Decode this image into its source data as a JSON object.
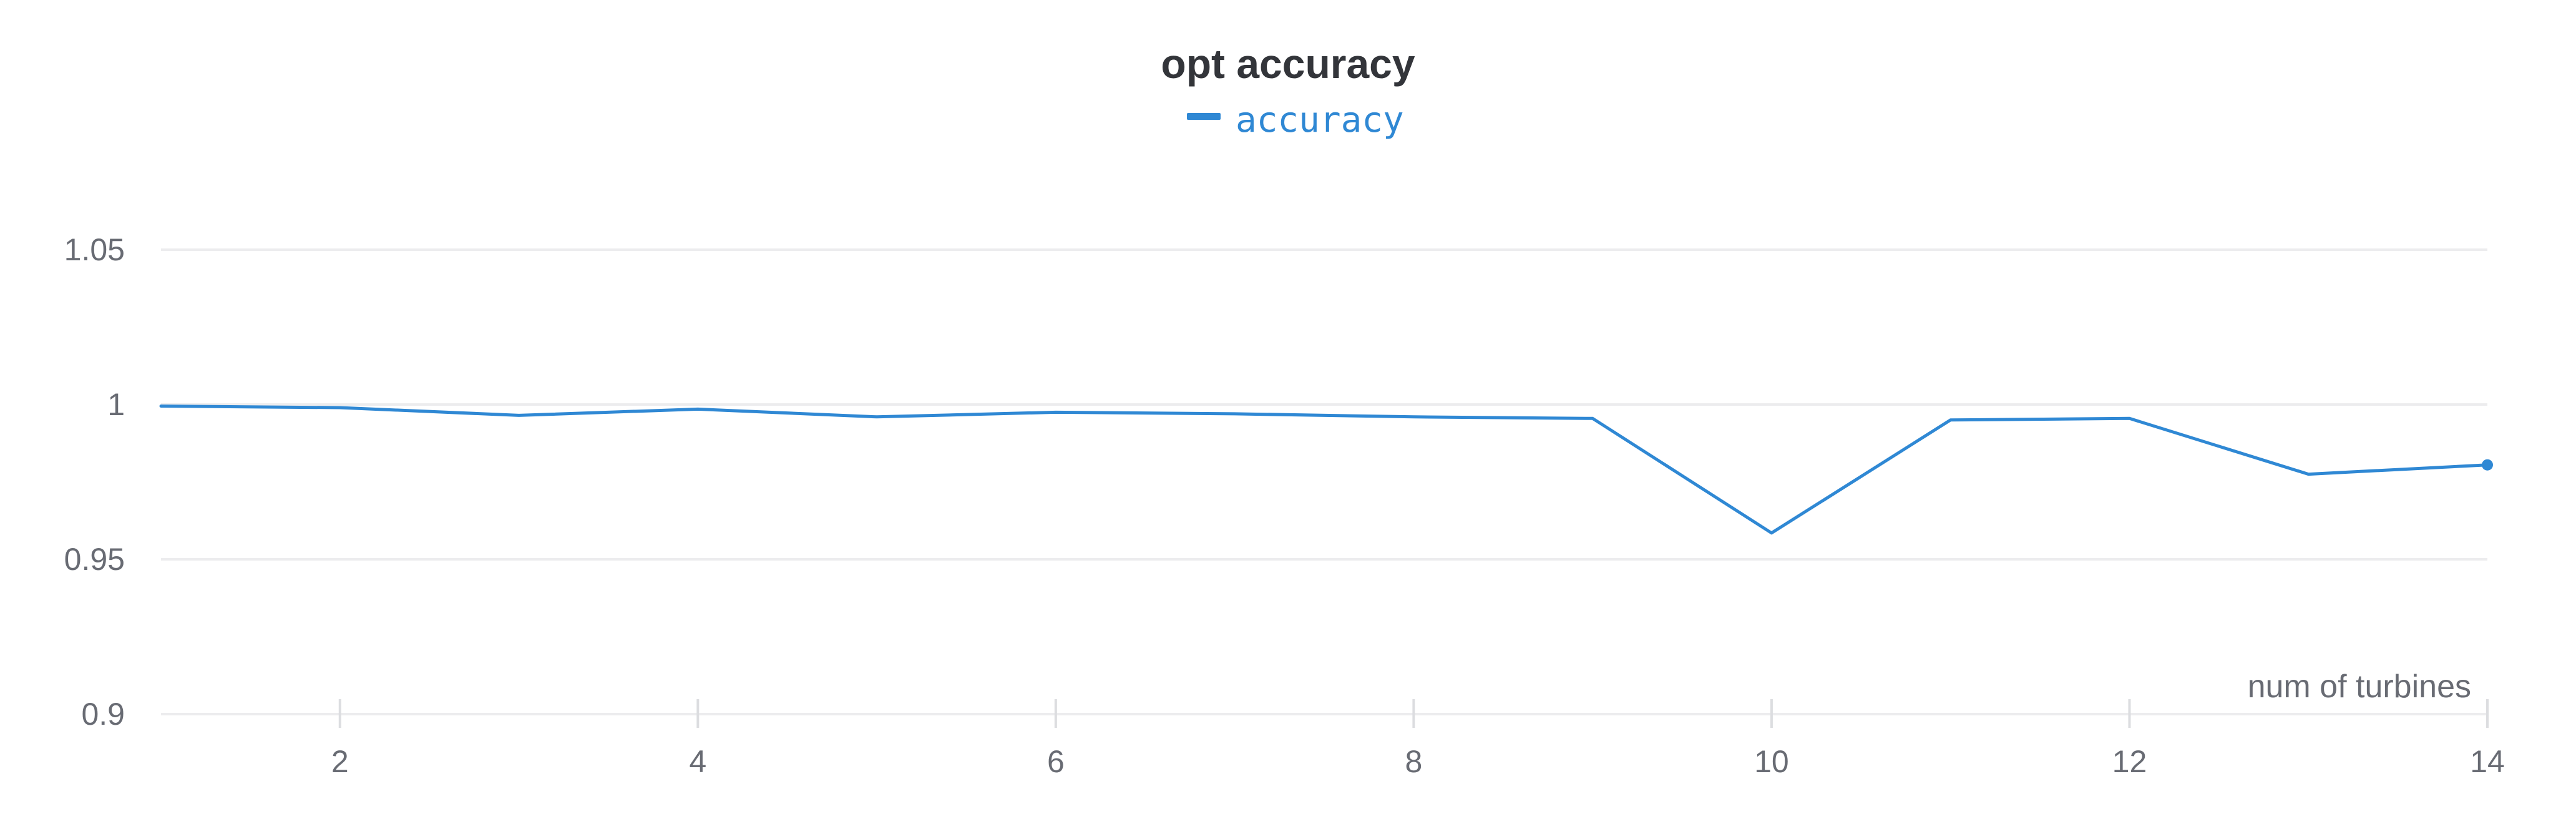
{
  "chart_data": {
    "type": "line",
    "title": "opt accuracy",
    "xlabel": "num of turbines",
    "ylabel": "",
    "xlim": [
      1,
      14
    ],
    "ylim": [
      0.9,
      1.05
    ],
    "x_ticks": [
      2,
      4,
      6,
      8,
      10,
      12,
      14
    ],
    "y_ticks": [
      0.9,
      0.95,
      1,
      1.05
    ],
    "y_tick_labels": [
      "0.9",
      "0.95",
      "1",
      "1.05"
    ],
    "x_tick_labels": [
      "2",
      "4",
      "6",
      "8",
      "10",
      "12",
      "14"
    ],
    "grid": true,
    "legend_position": "top-center",
    "x": [
      1,
      2,
      3,
      4,
      5,
      6,
      7,
      8,
      9,
      10,
      11,
      12,
      13,
      14
    ],
    "series": [
      {
        "name": "accuracy",
        "color": "#2f88d4",
        "values": [
          0.9995,
          0.999,
          0.9965,
          0.9985,
          0.996,
          0.9975,
          0.997,
          0.996,
          0.9955,
          0.9585,
          0.995,
          0.9955,
          0.9775,
          0.9805
        ]
      }
    ]
  }
}
